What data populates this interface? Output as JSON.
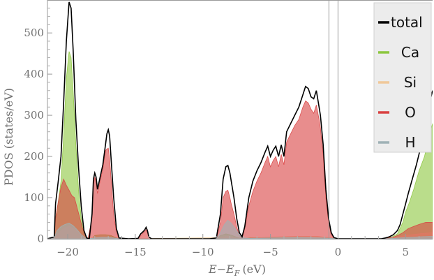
{
  "chart_data": {
    "type": "area",
    "xlabel": "E−E",
    "xlabel_sub": "F",
    "xlabel_unit": "(eV)",
    "ylabel": "PDOS (states/eV)",
    "xlim": [
      -21.5,
      7
    ],
    "ylim": [
      0,
      580
    ],
    "x_ticks": [
      -20,
      -15,
      -10,
      -5,
      0,
      5
    ],
    "x_tick_labels": [
      "−20",
      "−15",
      "−10",
      "−5",
      "0",
      "5"
    ],
    "y_ticks": [
      0,
      100,
      200,
      300,
      400,
      500
    ],
    "y_tick_labels": [
      "0",
      "100",
      "200",
      "300",
      "400",
      "500"
    ],
    "fermi_level": 0,
    "band_gap": [
      0,
      3.2
    ],
    "legend": {
      "placement": "top-right"
    },
    "series": [
      {
        "name": "total",
        "color": "#000000",
        "kind": "line",
        "points": [
          [
            -21.5,
            0
          ],
          [
            -21,
            5
          ],
          [
            -20.9,
            85
          ],
          [
            -20.7,
            140
          ],
          [
            -20.5,
            200
          ],
          [
            -20.3,
            330
          ],
          [
            -20.1,
            480
          ],
          [
            -19.9,
            575
          ],
          [
            -19.75,
            560
          ],
          [
            -19.6,
            460
          ],
          [
            -19.4,
            290
          ],
          [
            -19.2,
            175
          ],
          [
            -19,
            80
          ],
          [
            -18.8,
            20
          ],
          [
            -18.6,
            2
          ],
          [
            -18.4,
            0
          ],
          [
            -18.2,
            60
          ],
          [
            -18.1,
            145
          ],
          [
            -18,
            160
          ],
          [
            -17.9,
            150
          ],
          [
            -17.8,
            120
          ],
          [
            -17.6,
            150
          ],
          [
            -17.4,
            180
          ],
          [
            -17.2,
            230
          ],
          [
            -17.1,
            255
          ],
          [
            -17,
            265
          ],
          [
            -16.9,
            250
          ],
          [
            -16.8,
            200
          ],
          [
            -16.6,
            100
          ],
          [
            -16.4,
            25
          ],
          [
            -16.2,
            2
          ],
          [
            -15.5,
            0
          ],
          [
            -14.8,
            1
          ],
          [
            -14.6,
            12
          ],
          [
            -14.4,
            18
          ],
          [
            -14.3,
            22
          ],
          [
            -14.2,
            28
          ],
          [
            -14.1,
            20
          ],
          [
            -14,
            5
          ],
          [
            -13.8,
            0
          ],
          [
            -9.5,
            0
          ],
          [
            -9,
            2
          ],
          [
            -8.7,
            60
          ],
          [
            -8.5,
            145
          ],
          [
            -8.3,
            175
          ],
          [
            -8.15,
            178
          ],
          [
            -8,
            160
          ],
          [
            -7.9,
            140
          ],
          [
            -7.7,
            100
          ],
          [
            -7.5,
            50
          ],
          [
            -7.3,
            15
          ],
          [
            -7.1,
            5
          ],
          [
            -6.9,
            30
          ],
          [
            -6.6,
            100
          ],
          [
            -6.3,
            140
          ],
          [
            -6,
            165
          ],
          [
            -5.7,
            185
          ],
          [
            -5.4,
            210
          ],
          [
            -5.2,
            225
          ],
          [
            -5,
            200
          ],
          [
            -4.8,
            215
          ],
          [
            -4.6,
            225
          ],
          [
            -4.4,
            200
          ],
          [
            -4.2,
            228
          ],
          [
            -4,
            200
          ],
          [
            -3.8,
            260
          ],
          [
            -3.5,
            280
          ],
          [
            -3.2,
            300
          ],
          [
            -2.9,
            320
          ],
          [
            -2.6,
            350
          ],
          [
            -2.4,
            370
          ],
          [
            -2.2,
            365
          ],
          [
            -2,
            345
          ],
          [
            -1.8,
            340
          ],
          [
            -1.6,
            360
          ],
          [
            -1.4,
            320
          ],
          [
            -1.3,
            300
          ],
          [
            -1.1,
            230
          ],
          [
            -0.9,
            120
          ],
          [
            -0.7,
            50
          ],
          [
            -0.5,
            15
          ],
          [
            -0.3,
            3
          ],
          [
            0,
            0
          ],
          [
            3.2,
            0
          ],
          [
            3.5,
            2
          ],
          [
            3.8,
            5
          ],
          [
            4.1,
            10
          ],
          [
            4.4,
            20
          ],
          [
            4.6,
            35
          ],
          [
            4.8,
            60
          ],
          [
            5,
            85
          ],
          [
            5.2,
            110
          ],
          [
            5.5,
            145
          ],
          [
            5.8,
            180
          ],
          [
            6.1,
            220
          ],
          [
            6.4,
            260
          ],
          [
            6.7,
            320
          ],
          [
            7,
            360
          ]
        ]
      },
      {
        "name": "Ca",
        "color": "#8cc63e",
        "kind": "area",
        "points": [
          [
            -21.5,
            0
          ],
          [
            -21,
            2
          ],
          [
            -20.9,
            50
          ],
          [
            -20.7,
            90
          ],
          [
            -20.5,
            140
          ],
          [
            -20.3,
            250
          ],
          [
            -20.1,
            390
          ],
          [
            -19.9,
            455
          ],
          [
            -19.75,
            440
          ],
          [
            -19.6,
            360
          ],
          [
            -19.4,
            230
          ],
          [
            -19.2,
            120
          ],
          [
            -19,
            50
          ],
          [
            -18.8,
            10
          ],
          [
            -18.6,
            0
          ],
          [
            -18.2,
            0
          ],
          [
            -18,
            8
          ],
          [
            -17.6,
            10
          ],
          [
            -17.2,
            10
          ],
          [
            -16.8,
            8
          ],
          [
            -16.4,
            2
          ],
          [
            -16.2,
            0
          ],
          [
            -9,
            0
          ],
          [
            -8.7,
            8
          ],
          [
            -8.3,
            12
          ],
          [
            -8,
            10
          ],
          [
            -7.5,
            4
          ],
          [
            -7.1,
            0
          ],
          [
            -6.5,
            2
          ],
          [
            -5,
            3
          ],
          [
            -3,
            3
          ],
          [
            -1,
            2
          ],
          [
            0,
            0
          ],
          [
            3.2,
            0
          ],
          [
            3.5,
            1
          ],
          [
            4,
            5
          ],
          [
            4.4,
            12
          ],
          [
            4.8,
            40
          ],
          [
            5,
            65
          ],
          [
            5.3,
            90
          ],
          [
            5.6,
            120
          ],
          [
            6,
            165
          ],
          [
            6.4,
            200
          ],
          [
            6.7,
            245
          ],
          [
            7,
            280
          ]
        ]
      },
      {
        "name": "Si",
        "color": "#f0c89a",
        "kind": "area",
        "points": [
          [
            -21.5,
            0
          ],
          [
            -21,
            0
          ],
          [
            -20.8,
            10
          ],
          [
            -20.3,
            25
          ],
          [
            -19.9,
            30
          ],
          [
            -19.4,
            22
          ],
          [
            -19,
            10
          ],
          [
            -18.6,
            0
          ],
          [
            -18,
            3
          ],
          [
            -17.5,
            4
          ],
          [
            -17,
            4
          ],
          [
            -16.4,
            1
          ],
          [
            -16,
            0
          ],
          [
            -8.7,
            3
          ],
          [
            -8.2,
            6
          ],
          [
            -7.5,
            2
          ],
          [
            -7,
            0
          ],
          [
            -5,
            4
          ],
          [
            -3,
            6
          ],
          [
            -1.5,
            6
          ],
          [
            0,
            0
          ],
          [
            3.2,
            0
          ],
          [
            4,
            2
          ],
          [
            5,
            8
          ],
          [
            6,
            12
          ],
          [
            7,
            15
          ]
        ]
      },
      {
        "name": "O",
        "color": "#d94141",
        "kind": "area",
        "points": [
          [
            -21.5,
            0
          ],
          [
            -21,
            2
          ],
          [
            -20.9,
            50
          ],
          [
            -20.7,
            90
          ],
          [
            -20.5,
            125
          ],
          [
            -20.3,
            145
          ],
          [
            -20.1,
            130
          ],
          [
            -19.9,
            118
          ],
          [
            -19.7,
            105
          ],
          [
            -19.5,
            100
          ],
          [
            -19.3,
            75
          ],
          [
            -19.1,
            50
          ],
          [
            -18.9,
            25
          ],
          [
            -18.7,
            10
          ],
          [
            -18.5,
            0
          ],
          [
            -18.2,
            50
          ],
          [
            -18.1,
            130
          ],
          [
            -18,
            150
          ],
          [
            -17.9,
            140
          ],
          [
            -17.8,
            110
          ],
          [
            -17.6,
            140
          ],
          [
            -17.4,
            170
          ],
          [
            -17.2,
            215
          ],
          [
            -17.1,
            218
          ],
          [
            -17,
            220
          ],
          [
            -16.9,
            195
          ],
          [
            -16.8,
            150
          ],
          [
            -16.6,
            60
          ],
          [
            -16.4,
            15
          ],
          [
            -16.2,
            0
          ],
          [
            -14.8,
            0
          ],
          [
            -14.6,
            8
          ],
          [
            -14.4,
            15
          ],
          [
            -14.3,
            18
          ],
          [
            -14.2,
            22
          ],
          [
            -14.1,
            15
          ],
          [
            -14,
            3
          ],
          [
            -13.8,
            0
          ],
          [
            -9,
            0
          ],
          [
            -8.7,
            40
          ],
          [
            -8.5,
            100
          ],
          [
            -8.3,
            115
          ],
          [
            -8.15,
            118
          ],
          [
            -8,
            100
          ],
          [
            -7.9,
            85
          ],
          [
            -7.7,
            60
          ],
          [
            -7.5,
            30
          ],
          [
            -7.3,
            8
          ],
          [
            -7.1,
            2
          ],
          [
            -6.9,
            25
          ],
          [
            -6.6,
            80
          ],
          [
            -6.3,
            115
          ],
          [
            -6,
            140
          ],
          [
            -5.7,
            160
          ],
          [
            -5.4,
            185
          ],
          [
            -5.2,
            200
          ],
          [
            -5,
            175
          ],
          [
            -4.8,
            190
          ],
          [
            -4.6,
            200
          ],
          [
            -4.4,
            175
          ],
          [
            -4.2,
            205
          ],
          [
            -4,
            180
          ],
          [
            -3.8,
            235
          ],
          [
            -3.5,
            255
          ],
          [
            -3.2,
            275
          ],
          [
            -2.9,
            290
          ],
          [
            -2.6,
            320
          ],
          [
            -2.4,
            335
          ],
          [
            -2.2,
            330
          ],
          [
            -2,
            315
          ],
          [
            -1.8,
            305
          ],
          [
            -1.6,
            325
          ],
          [
            -1.4,
            290
          ],
          [
            -1.3,
            270
          ],
          [
            -1.1,
            205
          ],
          [
            -0.9,
            100
          ],
          [
            -0.7,
            40
          ],
          [
            -0.5,
            10
          ],
          [
            -0.3,
            2
          ],
          [
            0,
            0
          ],
          [
            3.2,
            0
          ],
          [
            3.5,
            1
          ],
          [
            4,
            3
          ],
          [
            4.4,
            8
          ],
          [
            4.8,
            15
          ],
          [
            5.2,
            25
          ],
          [
            5.6,
            30
          ],
          [
            6,
            35
          ],
          [
            6.5,
            40
          ],
          [
            7,
            40
          ]
        ]
      },
      {
        "name": "H",
        "color": "#9fb2b6",
        "kind": "area",
        "points": [
          [
            -21.5,
            0
          ],
          [
            -21,
            2
          ],
          [
            -20.8,
            20
          ],
          [
            -20.5,
            30
          ],
          [
            -20.2,
            35
          ],
          [
            -19.9,
            38
          ],
          [
            -19.6,
            32
          ],
          [
            -19.3,
            22
          ],
          [
            -19,
            10
          ],
          [
            -18.6,
            0
          ],
          [
            -18,
            2
          ],
          [
            -17.5,
            4
          ],
          [
            -17,
            4
          ],
          [
            -16.4,
            1
          ],
          [
            -16,
            0
          ],
          [
            -9,
            0
          ],
          [
            -8.7,
            15
          ],
          [
            -8.4,
            35
          ],
          [
            -8.15,
            45
          ],
          [
            -7.9,
            38
          ],
          [
            -7.6,
            25
          ],
          [
            -7.3,
            10
          ],
          [
            -7,
            2
          ],
          [
            -6.5,
            1
          ],
          [
            -5,
            2
          ],
          [
            -3,
            3
          ],
          [
            -1,
            2
          ],
          [
            0,
            0
          ],
          [
            3.2,
            0
          ],
          [
            4,
            1
          ],
          [
            5,
            3
          ],
          [
            6,
            5
          ],
          [
            7,
            6
          ]
        ]
      }
    ]
  }
}
